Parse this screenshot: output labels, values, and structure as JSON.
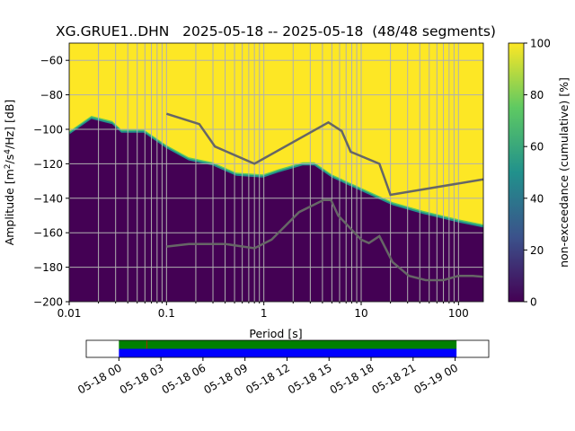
{
  "chart_data": {
    "type": "heatmap",
    "title": "XG.GRUE1..DHN   2025-05-18 -- 2025-05-18  (48/48 segments)",
    "xlabel": "Period [s]",
    "ylabel_parts": [
      "Amplitude [m",
      "2",
      "/s",
      "4",
      "/Hz] [dB]"
    ],
    "xscale": "log",
    "xlim": [
      0.01,
      180
    ],
    "ylim": [
      -200,
      -50
    ],
    "xticks": [
      {
        "v": 0.01,
        "label": "0.01"
      },
      {
        "v": 0.1,
        "label": "0.1"
      },
      {
        "v": 1,
        "label": "1"
      },
      {
        "v": 10,
        "label": "10"
      },
      {
        "v": 100,
        "label": "100"
      }
    ],
    "yticks": [
      {
        "v": -60,
        "label": "−60"
      },
      {
        "v": -80,
        "label": "−80"
      },
      {
        "v": -100,
        "label": "−100"
      },
      {
        "v": -120,
        "label": "−120"
      },
      {
        "v": -140,
        "label": "−140"
      },
      {
        "v": -160,
        "label": "−160"
      },
      {
        "v": -180,
        "label": "−180"
      },
      {
        "v": -200,
        "label": "−200"
      }
    ],
    "grid": true,
    "psd_boundary": {
      "description_period": [
        0.01,
        0.0169,
        0.0277,
        0.0343,
        0.0584,
        0.1,
        0.169,
        0.298,
        0.52,
        0.98,
        1.41,
        2.5,
        3.3,
        5.0,
        10.2,
        20.9,
        42.7,
        100,
        180
      ],
      "db": [
        -103,
        -94,
        -97,
        -102,
        -102,
        -111,
        -118,
        -121,
        -127,
        -128,
        -125,
        -121,
        -121,
        -128,
        -136,
        -144,
        -149,
        -154,
        -157
      ]
    },
    "nhnm": {
      "period": [
        0.1,
        0.217,
        0.315,
        0.8,
        4.6,
        6.3,
        7.8,
        15.4,
        20,
        180
      ],
      "db": [
        -91,
        -97,
        -110,
        -120,
        -96,
        -101,
        -113,
        -120,
        -138,
        -129
      ]
    },
    "nlnm": {
      "period": [
        0.1,
        0.17,
        0.4,
        0.8,
        1.2,
        2.3,
        4.1,
        4.9,
        5.8,
        10,
        12,
        15.4,
        21,
        31,
        46,
        70,
        100,
        140,
        180
      ],
      "db": [
        -168,
        -166.5,
        -166.5,
        -169,
        -164,
        -148,
        -141,
        -141,
        -150,
        -164,
        -166,
        -162,
        -177,
        -185,
        -187.5,
        -187.5,
        -185,
        -185,
        -185.5
      ]
    },
    "colorbar": {
      "label": "non-exceedance (cumulative) [%]",
      "range": [
        0,
        100
      ],
      "ticks": [
        "0",
        "20",
        "40",
        "60",
        "80",
        "100"
      ],
      "colors": [
        "#440154",
        "#3b528b",
        "#21918c",
        "#5ec962",
        "#fde725"
      ]
    },
    "timeline": {
      "ticks": [
        "05-18 00",
        "05-18 03",
        "05-18 06",
        "05-18 09",
        "05-18 12",
        "05-18 15",
        "05-18 18",
        "05-18 21",
        "05-19 00"
      ],
      "range_hours": [
        -2.33,
        26.4
      ],
      "data_coverage_hours": [
        0,
        24.1
      ],
      "gap_marker_hours": 2,
      "colors": {
        "data": "#008000",
        "used": "#0000ff",
        "gap": "#ff0000"
      }
    }
  }
}
